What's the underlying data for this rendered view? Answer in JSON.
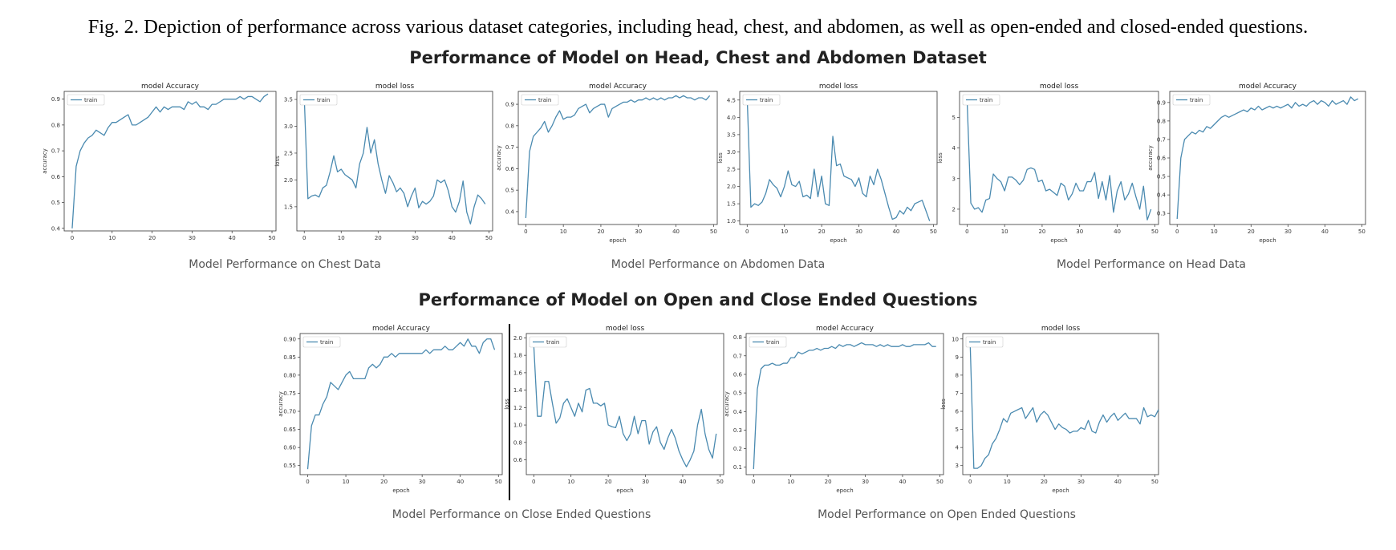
{
  "caption": "Fig. 2.  Depiction of performance across various dataset categories, including head, chest, and abdomen, as well as open-ended and closed-ended questions.",
  "section1_title": "Performance of Model on Head, Chest and Abdomen Dataset",
  "section2_title": "Performance of Model on Open and Close Ended Questions",
  "subcaptions": {
    "chest": "Model Performance on Chest Data",
    "abdomen": "Model Performance on Abdomen Data",
    "head": "Model Performance on Head Data",
    "close": "Model Performance on Close Ended Questions",
    "open": "Model Performance on Open Ended Questions"
  },
  "colors": {
    "line": "#4a8ab0",
    "axis": "#333333"
  },
  "chart_data": [
    {
      "id": "chest-accuracy",
      "type": "line",
      "title": "model Accuracy",
      "xlabel": "",
      "ylabel": "accuracy",
      "xlim": [
        -2,
        51
      ],
      "ylim": [
        0.39,
        0.93
      ],
      "xticks": [
        0,
        10,
        20,
        30,
        40,
        50
      ],
      "yticks": [
        0.4,
        0.5,
        0.6,
        0.7,
        0.8,
        0.9
      ],
      "legend": "train",
      "values": [
        0.4,
        0.64,
        0.7,
        0.73,
        0.75,
        0.76,
        0.78,
        0.77,
        0.76,
        0.79,
        0.81,
        0.81,
        0.82,
        0.83,
        0.84,
        0.8,
        0.8,
        0.81,
        0.82,
        0.83,
        0.85,
        0.87,
        0.85,
        0.87,
        0.86,
        0.87,
        0.87,
        0.87,
        0.86,
        0.89,
        0.88,
        0.89,
        0.87,
        0.87,
        0.86,
        0.88,
        0.88,
        0.89,
        0.9,
        0.9,
        0.9,
        0.9,
        0.91,
        0.9,
        0.91,
        0.91,
        0.9,
        0.89,
        0.91,
        0.92
      ]
    },
    {
      "id": "chest-loss",
      "type": "line",
      "title": "model loss",
      "xlabel": "",
      "ylabel": "loss",
      "xlim": [
        -2,
        51
      ],
      "ylim": [
        1.05,
        3.65
      ],
      "xticks": [
        0,
        10,
        20,
        30,
        40,
        50
      ],
      "yticks": [
        1.5,
        2.0,
        2.5,
        3.0,
        3.5
      ],
      "legend": "train",
      "values": [
        3.55,
        1.65,
        1.7,
        1.72,
        1.68,
        1.85,
        1.9,
        2.15,
        2.45,
        2.15,
        2.2,
        2.1,
        2.05,
        2.0,
        1.85,
        2.3,
        2.5,
        2.98,
        2.5,
        2.75,
        2.3,
        2.0,
        1.75,
        2.08,
        1.95,
        1.78,
        1.85,
        1.75,
        1.5,
        1.7,
        1.85,
        1.48,
        1.6,
        1.55,
        1.6,
        1.7,
        2.0,
        1.95,
        2.0,
        1.8,
        1.5,
        1.4,
        1.6,
        1.98,
        1.4,
        1.18,
        1.5,
        1.72,
        1.65,
        1.55
      ]
    },
    {
      "id": "abdomen-accuracy",
      "type": "line",
      "title": "model Accuracy",
      "xlabel": "epoch",
      "ylabel": "accuracy",
      "xlim": [
        -2,
        51
      ],
      "ylim": [
        0.34,
        0.96
      ],
      "xticks": [
        0,
        10,
        20,
        30,
        40,
        50
      ],
      "yticks": [
        0.4,
        0.5,
        0.6,
        0.7,
        0.8,
        0.9
      ],
      "legend": "train",
      "values": [
        0.37,
        0.68,
        0.75,
        0.77,
        0.79,
        0.82,
        0.77,
        0.8,
        0.84,
        0.87,
        0.83,
        0.84,
        0.84,
        0.85,
        0.88,
        0.89,
        0.9,
        0.86,
        0.88,
        0.89,
        0.9,
        0.9,
        0.84,
        0.88,
        0.89,
        0.9,
        0.91,
        0.91,
        0.92,
        0.91,
        0.92,
        0.92,
        0.93,
        0.92,
        0.93,
        0.92,
        0.93,
        0.92,
        0.93,
        0.93,
        0.94,
        0.93,
        0.94,
        0.93,
        0.93,
        0.92,
        0.93,
        0.93,
        0.92,
        0.94
      ]
    },
    {
      "id": "abdomen-loss",
      "type": "line",
      "title": "model loss",
      "xlabel": "epoch",
      "ylabel": "loss",
      "xlim": [
        -2,
        51
      ],
      "ylim": [
        0.9,
        4.75
      ],
      "xticks": [
        0,
        10,
        20,
        30,
        40,
        50
      ],
      "yticks": [
        1.0,
        1.5,
        2.0,
        2.5,
        3.0,
        3.5,
        4.0,
        4.5
      ],
      "legend": "train",
      "values": [
        4.6,
        1.4,
        1.5,
        1.45,
        1.55,
        1.8,
        2.2,
        2.05,
        1.95,
        1.7,
        2.0,
        2.45,
        2.05,
        2.0,
        2.15,
        1.7,
        1.75,
        1.65,
        2.5,
        1.7,
        2.3,
        1.5,
        1.45,
        3.45,
        2.6,
        2.65,
        2.3,
        2.25,
        2.2,
        2.0,
        2.25,
        1.8,
        1.7,
        2.3,
        2.05,
        2.5,
        2.2,
        1.8,
        1.4,
        1.05,
        1.1,
        1.3,
        1.2,
        1.4,
        1.3,
        1.5,
        1.55,
        1.6,
        1.3,
        1.0
      ]
    },
    {
      "id": "head-loss",
      "type": "line",
      "title": "model loss",
      "xlabel": "epoch",
      "ylabel": "loss",
      "xlim": [
        -2,
        51
      ],
      "ylim": [
        1.5,
        5.85
      ],
      "xticks": [
        0,
        10,
        20,
        30,
        40,
        50
      ],
      "yticks": [
        2,
        3,
        4,
        5
      ],
      "legend": "train",
      "values": [
        5.6,
        2.2,
        2.0,
        2.05,
        1.9,
        2.3,
        2.35,
        3.15,
        3.0,
        2.9,
        2.6,
        3.05,
        3.05,
        2.95,
        2.8,
        2.95,
        3.3,
        3.35,
        3.3,
        2.9,
        2.95,
        2.6,
        2.65,
        2.55,
        2.45,
        2.85,
        2.75,
        2.3,
        2.5,
        2.85,
        2.6,
        2.6,
        2.9,
        2.9,
        3.2,
        2.35,
        2.9,
        2.3,
        3.1,
        1.9,
        2.6,
        2.9,
        2.3,
        2.5,
        2.85,
        2.4,
        2.0,
        2.75,
        1.65,
        2.0
      ]
    },
    {
      "id": "head-accuracy",
      "type": "line",
      "title": "model Accuracy",
      "xlabel": "epoch",
      "ylabel": "accuracy",
      "xlim": [
        -2,
        51
      ],
      "ylim": [
        0.24,
        0.96
      ],
      "xticks": [
        0,
        10,
        20,
        30,
        40,
        50
      ],
      "yticks": [
        0.3,
        0.4,
        0.5,
        0.6,
        0.7,
        0.8,
        0.9
      ],
      "legend": "train",
      "values": [
        0.27,
        0.6,
        0.7,
        0.72,
        0.74,
        0.73,
        0.75,
        0.74,
        0.77,
        0.76,
        0.78,
        0.8,
        0.82,
        0.83,
        0.82,
        0.83,
        0.84,
        0.85,
        0.86,
        0.85,
        0.87,
        0.86,
        0.88,
        0.86,
        0.87,
        0.88,
        0.87,
        0.88,
        0.87,
        0.88,
        0.89,
        0.87,
        0.9,
        0.88,
        0.89,
        0.88,
        0.9,
        0.91,
        0.89,
        0.91,
        0.9,
        0.88,
        0.91,
        0.89,
        0.9,
        0.91,
        0.89,
        0.93,
        0.91,
        0.92
      ]
    },
    {
      "id": "close-accuracy",
      "type": "line",
      "title": "model Accuracy",
      "xlabel": "epoch",
      "ylabel": "accuracy",
      "xlim": [
        -2,
        51
      ],
      "ylim": [
        0.525,
        0.915
      ],
      "xticks": [
        0,
        10,
        20,
        30,
        40,
        50
      ],
      "yticks": [
        0.55,
        0.6,
        0.65,
        0.7,
        0.75,
        0.8,
        0.85,
        0.9
      ],
      "legend": "train",
      "values": [
        0.54,
        0.66,
        0.69,
        0.69,
        0.72,
        0.74,
        0.78,
        0.77,
        0.76,
        0.78,
        0.8,
        0.81,
        0.79,
        0.79,
        0.79,
        0.79,
        0.82,
        0.83,
        0.82,
        0.83,
        0.85,
        0.85,
        0.86,
        0.85,
        0.86,
        0.86,
        0.86,
        0.86,
        0.86,
        0.86,
        0.86,
        0.87,
        0.86,
        0.87,
        0.87,
        0.87,
        0.88,
        0.87,
        0.87,
        0.88,
        0.89,
        0.88,
        0.9,
        0.88,
        0.88,
        0.86,
        0.89,
        0.9,
        0.9,
        0.87
      ]
    },
    {
      "id": "close-loss",
      "type": "line",
      "title": "model loss",
      "xlabel": "epoch",
      "ylabel": "loss",
      "xlim": [
        -2,
        51
      ],
      "ylim": [
        0.43,
        2.05
      ],
      "xticks": [
        0,
        10,
        20,
        30,
        40,
        50
      ],
      "yticks": [
        0.6,
        0.8,
        1.0,
        1.2,
        1.4,
        1.6,
        1.8,
        2.0
      ],
      "legend": "train",
      "values": [
        1.92,
        1.1,
        1.1,
        1.5,
        1.5,
        1.25,
        1.02,
        1.08,
        1.25,
        1.3,
        1.2,
        1.1,
        1.25,
        1.15,
        1.4,
        1.42,
        1.25,
        1.25,
        1.22,
        1.25,
        1.0,
        0.98,
        0.97,
        1.1,
        0.9,
        0.82,
        0.9,
        1.1,
        0.9,
        1.05,
        1.05,
        0.78,
        0.92,
        0.98,
        0.8,
        0.72,
        0.85,
        0.95,
        0.85,
        0.7,
        0.6,
        0.52,
        0.6,
        0.7,
        1.0,
        1.18,
        0.9,
        0.72,
        0.62,
        0.9
      ]
    },
    {
      "id": "open-accuracy",
      "type": "line",
      "title": "model Accuracy",
      "xlabel": "epoch",
      "ylabel": "accuracy",
      "xlim": [
        -2,
        51
      ],
      "ylim": [
        0.06,
        0.82
      ],
      "xticks": [
        0,
        10,
        20,
        30,
        40,
        50
      ],
      "yticks": [
        0.1,
        0.2,
        0.3,
        0.4,
        0.5,
        0.6,
        0.7,
        0.8
      ],
      "legend": "train",
      "values": [
        0.09,
        0.52,
        0.63,
        0.65,
        0.65,
        0.66,
        0.65,
        0.65,
        0.66,
        0.66,
        0.69,
        0.69,
        0.72,
        0.71,
        0.72,
        0.73,
        0.73,
        0.74,
        0.73,
        0.74,
        0.74,
        0.75,
        0.74,
        0.76,
        0.75,
        0.76,
        0.76,
        0.75,
        0.76,
        0.77,
        0.76,
        0.76,
        0.76,
        0.75,
        0.76,
        0.75,
        0.76,
        0.75,
        0.75,
        0.75,
        0.76,
        0.75,
        0.75,
        0.76,
        0.76,
        0.76,
        0.76,
        0.77,
        0.75,
        0.75
      ]
    },
    {
      "id": "open-loss",
      "type": "line",
      "title": "model loss",
      "xlabel": "epoch",
      "ylabel": "loss",
      "xlim": [
        -2,
        51
      ],
      "ylim": [
        2.5,
        10.3
      ],
      "xticks": [
        0,
        10,
        20,
        30,
        40,
        50
      ],
      "yticks": [
        3,
        4,
        5,
        6,
        7,
        8,
        9,
        10
      ],
      "legend": "train",
      "values": [
        9.8,
        2.85,
        2.85,
        3.0,
        3.4,
        3.6,
        4.2,
        4.5,
        5.0,
        5.6,
        5.4,
        5.9,
        6.0,
        6.1,
        6.2,
        5.6,
        5.9,
        6.2,
        5.4,
        5.8,
        6.0,
        5.8,
        5.4,
        5.0,
        5.3,
        5.1,
        5.0,
        4.8,
        4.9,
        4.9,
        5.1,
        5.0,
        5.5,
        4.9,
        4.8,
        5.4,
        5.8,
        5.4,
        5.7,
        5.9,
        5.5,
        5.7,
        5.9,
        5.6,
        5.6,
        5.6,
        5.3,
        6.2,
        5.7,
        5.8,
        5.7,
        6.1
      ]
    }
  ]
}
